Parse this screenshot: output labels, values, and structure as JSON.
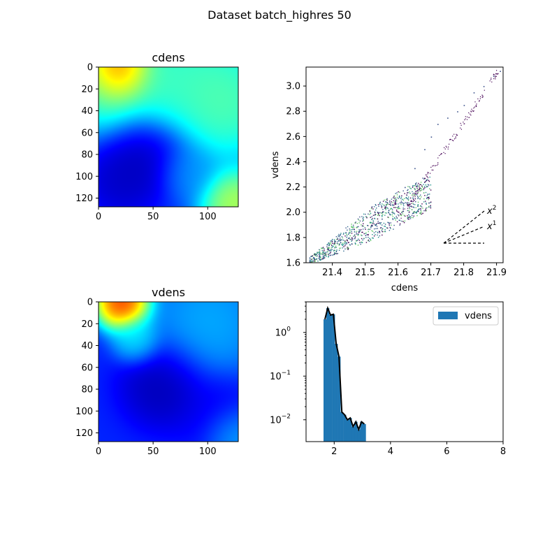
{
  "figure": {
    "title": "Dataset batch_highres 50"
  },
  "chart_data": [
    {
      "type": "heatmap",
      "title": "cdens",
      "colormap": "jet",
      "xlim": [
        0,
        128
      ],
      "ylim": [
        128,
        0
      ],
      "xticks": [
        0,
        50,
        100
      ],
      "yticks": [
        0,
        20,
        40,
        60,
        80,
        100,
        120
      ],
      "blobs": [
        {
          "x": 20,
          "y": 0,
          "r": 16,
          "v": 1.0
        },
        {
          "x": 10,
          "y": 15,
          "r": 25,
          "v": 0.55
        },
        {
          "x": 90,
          "y": 15,
          "r": 35,
          "v": 0.5
        },
        {
          "x": 60,
          "y": 10,
          "r": 22,
          "v": 0.45
        },
        {
          "x": 120,
          "y": 35,
          "r": 25,
          "v": 0.5
        },
        {
          "x": 125,
          "y": 125,
          "r": 18,
          "v": 0.65
        },
        {
          "x": 80,
          "y": 95,
          "r": 15,
          "v": 0.3
        },
        {
          "x": 45,
          "y": 80,
          "r": 22,
          "v": 0.02
        },
        {
          "x": 20,
          "y": 105,
          "r": 18,
          "v": 0.05
        }
      ],
      "base": 0.18
    },
    {
      "type": "scatter",
      "xlabel": "cdens",
      "ylabel": "vdens",
      "xlim": [
        21.32,
        21.92
      ],
      "ylim": [
        1.6,
        3.15
      ],
      "xticks": [
        21.4,
        21.5,
        21.6,
        21.7,
        21.8,
        21.9
      ],
      "yticks": [
        1.6,
        1.8,
        2.0,
        2.2,
        2.4,
        2.6,
        2.8,
        3.0
      ],
      "x": [
        21.33,
        21.36,
        21.39,
        21.42,
        21.45,
        21.48,
        21.5,
        21.53,
        21.55,
        21.57,
        21.6,
        21.62,
        21.65,
        21.68,
        21.7,
        21.72,
        21.75,
        21.78,
        21.8,
        21.83,
        21.86,
        21.89,
        21.91
      ],
      "y": [
        1.61,
        1.65,
        1.7,
        1.75,
        1.8,
        1.85,
        1.82,
        1.9,
        1.95,
        2.0,
        2.05,
        2.2,
        2.35,
        2.5,
        2.6,
        2.7,
        2.75,
        2.8,
        2.85,
        2.95,
        3.0,
        3.08,
        3.12
      ],
      "guide_lines": [
        {
          "label_base": "x",
          "label_exp": "2",
          "slope": 2
        },
        {
          "label_base": "x",
          "label_exp": "1",
          "slope": 1
        },
        {
          "label_base": "",
          "label_exp": "",
          "slope": 0
        }
      ]
    },
    {
      "type": "heatmap",
      "title": "vdens",
      "colormap": "jet",
      "xlim": [
        0,
        128
      ],
      "ylim": [
        128,
        0
      ],
      "xticks": [
        0,
        50,
        100
      ],
      "yticks": [
        0,
        20,
        40,
        60,
        80,
        100,
        120
      ],
      "blobs": [
        {
          "x": 22,
          "y": 0,
          "r": 14,
          "v": 1.0
        },
        {
          "x": 35,
          "y": 35,
          "r": 12,
          "v": 0.4
        },
        {
          "x": 100,
          "y": 20,
          "r": 30,
          "v": 0.33
        },
        {
          "x": 125,
          "y": 120,
          "r": 15,
          "v": 0.35
        },
        {
          "x": 60,
          "y": 75,
          "r": 22,
          "v": 0.02
        },
        {
          "x": 110,
          "y": 100,
          "r": 20,
          "v": 0.1
        }
      ],
      "base": 0.16
    },
    {
      "type": "bar",
      "subtype": "histogram",
      "xlim": [
        1,
        8
      ],
      "ylim_log10": [
        -2.5,
        0.7
      ],
      "yscale": "log",
      "xticks": [
        2,
        4,
        6,
        8
      ],
      "yticks_label": [
        "10^0",
        "10^-1",
        "10^-2"
      ],
      "legend": "top-right",
      "series": [
        {
          "name": "vdens",
          "color": "#1f77b4",
          "edges": [
            1.62,
            1.72,
            1.82,
            1.92,
            2.02,
            2.12,
            2.22,
            2.32,
            2.42,
            2.52,
            2.62,
            2.72,
            2.82,
            2.92,
            3.02,
            3.12
          ],
          "values": [
            2.0,
            3.6,
            2.5,
            2.6,
            0.55,
            0.28,
            0.015,
            0.013,
            0.01,
            0.011,
            0.007,
            0.009,
            0.006,
            0.009,
            0.008
          ]
        }
      ]
    }
  ]
}
